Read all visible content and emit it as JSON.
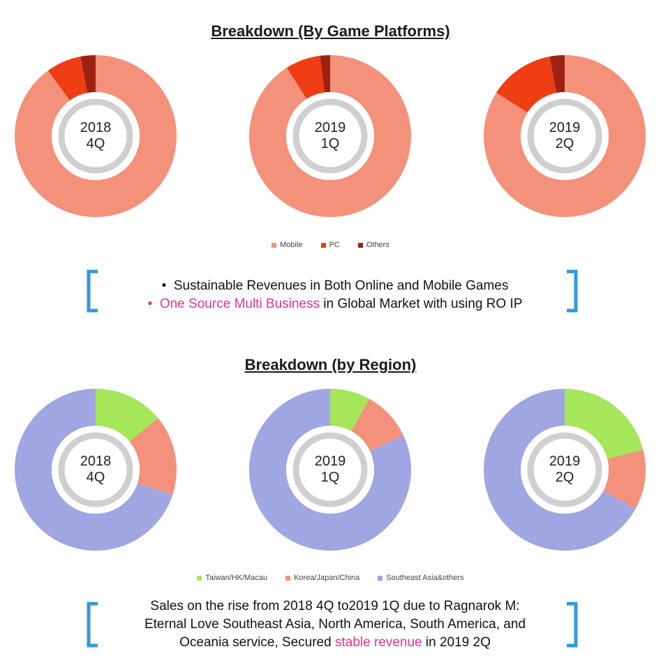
{
  "platforms": {
    "title": "Breakdown (By Game Platforms)",
    "legend": [
      {
        "label": "Mobile",
        "color": "#f4917b"
      },
      {
        "label": "PC",
        "color": "#ef3d14"
      },
      {
        "label": "Others",
        "color": "#9e2212"
      }
    ],
    "callout": {
      "bullet1": "•",
      "line1": "Sustainable Revenues in Both Online and Mobile Games",
      "bullet2": "•",
      "line2_highlight": "One Source Multi Business",
      "line2_rest": " in Global Market with using RO IP"
    }
  },
  "region": {
    "title": "Breakdown (by Region)",
    "legend": [
      {
        "label": "Taiwan/HK/Macau",
        "color": "#a5e65a"
      },
      {
        "label": "Korea/Japan/China",
        "color": "#f4917b"
      },
      {
        "label": "Southeast Asia&others",
        "color": "#9fa6e1"
      }
    ],
    "callout": {
      "line1": "Sales on the rise from 2018 4Q to2019 1Q due to Ragnarok M:",
      "line2": "Eternal Love Southeast Asia, North America, South America, and",
      "line3_pre": "Oceania service, Secured ",
      "line3_highlight": "stable revenue",
      "line3_post": " in 2019 2Q"
    }
  },
  "chart_data": [
    {
      "type": "pie",
      "title": "2018 4Q",
      "labels": [
        "Mobile",
        "PC",
        "Others"
      ],
      "values": [
        90,
        7,
        3
      ]
    },
    {
      "type": "pie",
      "title": "2019 1Q",
      "labels": [
        "Mobile",
        "PC",
        "Others"
      ],
      "values": [
        91,
        7,
        2
      ]
    },
    {
      "type": "pie",
      "title": "2019 2Q",
      "labels": [
        "Mobile",
        "PC",
        "Others"
      ],
      "values": [
        84,
        13,
        3
      ]
    },
    {
      "type": "pie",
      "title": "2018 4Q",
      "labels": [
        "Taiwan/HK/Macau",
        "Korea/Japan/China",
        "Southeast Asia&others"
      ],
      "values": [
        14,
        16,
        70
      ]
    },
    {
      "type": "pie",
      "title": "2019 1Q",
      "labels": [
        "Taiwan/HK/Macau",
        "Korea/Japan/China",
        "Southeast Asia&others"
      ],
      "values": [
        8,
        10,
        82
      ]
    },
    {
      "type": "pie",
      "title": "2019 2Q",
      "labels": [
        "Taiwan/HK/Macau",
        "Korea/Japan/China",
        "Southeast Asia&others"
      ],
      "values": [
        21,
        12,
        67
      ]
    }
  ]
}
